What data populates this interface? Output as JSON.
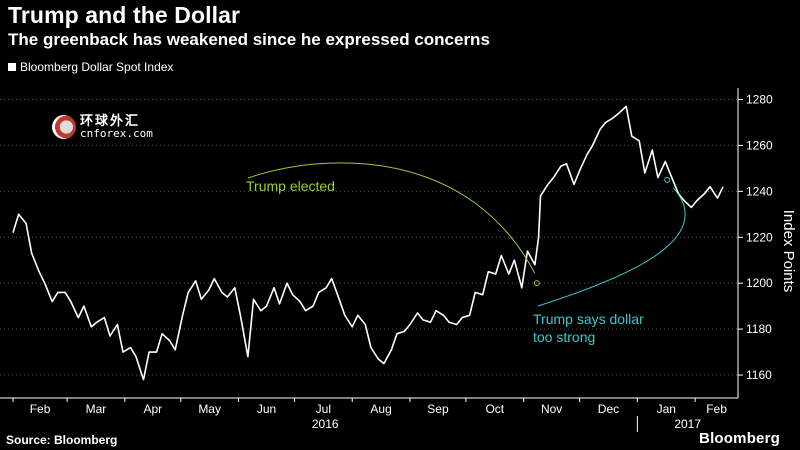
{
  "header": {
    "title": "Trump and the Dollar",
    "subtitle": "The greenback has weakened since he expressed concerns",
    "legend_label": "Bloomberg Dollar Spot Index"
  },
  "footer": {
    "source": "Source: Bloomberg",
    "brand": "Bloomberg"
  },
  "watermark": {
    "cn": "环球外汇",
    "en": "cnforex.com"
  },
  "colors": {
    "background": "#000000",
    "line": "#ffffff",
    "annotation_elected": "#9acd32",
    "annotation_strong": "#3ec6d0",
    "grid": "#555555"
  },
  "chart_data": {
    "type": "line",
    "title": "Trump and the Dollar",
    "subtitle": "The greenback has weakened since he expressed concerns",
    "ylabel": "Index Points",
    "ylim": [
      1150,
      1285
    ],
    "yticks": [
      1160,
      1180,
      1200,
      1220,
      1240,
      1260,
      1280
    ],
    "y_axis_side": "right",
    "grid": "horizontal dotted",
    "x_month_labels": [
      "Feb",
      "Mar",
      "Apr",
      "May",
      "Jun",
      "Jul",
      "Aug",
      "Sep",
      "Oct",
      "Nov",
      "Dec",
      "Jan",
      "Feb"
    ],
    "x_year_labels": [
      "2016",
      "2017"
    ],
    "series": [
      {
        "name": "Bloomberg Dollar Spot Index",
        "x": [
          "2016-02-01",
          "2016-02-04",
          "2016-02-08",
          "2016-02-11",
          "2016-02-15",
          "2016-02-18",
          "2016-02-22",
          "2016-02-25",
          "2016-02-29",
          "2016-03-03",
          "2016-03-07",
          "2016-03-10",
          "2016-03-14",
          "2016-03-17",
          "2016-03-21",
          "2016-03-24",
          "2016-03-28",
          "2016-03-31",
          "2016-04-04",
          "2016-04-07",
          "2016-04-11",
          "2016-04-14",
          "2016-04-18",
          "2016-04-21",
          "2016-04-25",
          "2016-04-28",
          "2016-05-02",
          "2016-05-05",
          "2016-05-09",
          "2016-05-12",
          "2016-05-16",
          "2016-05-19",
          "2016-05-23",
          "2016-05-26",
          "2016-05-30",
          "2016-06-02",
          "2016-06-06",
          "2016-06-09",
          "2016-06-13",
          "2016-06-16",
          "2016-06-20",
          "2016-06-23",
          "2016-06-27",
          "2016-06-30",
          "2016-07-04",
          "2016-07-07",
          "2016-07-11",
          "2016-07-14",
          "2016-07-18",
          "2016-07-21",
          "2016-07-25",
          "2016-07-28",
          "2016-08-01",
          "2016-08-04",
          "2016-08-08",
          "2016-08-11",
          "2016-08-15",
          "2016-08-18",
          "2016-08-22",
          "2016-08-25",
          "2016-08-29",
          "2016-09-01",
          "2016-09-05",
          "2016-09-08",
          "2016-09-12",
          "2016-09-15",
          "2016-09-19",
          "2016-09-22",
          "2016-09-26",
          "2016-09-29",
          "2016-10-03",
          "2016-10-06",
          "2016-10-10",
          "2016-10-13",
          "2016-10-17",
          "2016-10-20",
          "2016-10-24",
          "2016-10-27",
          "2016-10-31",
          "2016-11-03",
          "2016-11-07",
          "2016-11-09",
          "2016-11-10",
          "2016-11-14",
          "2016-11-17",
          "2016-11-21",
          "2016-11-24",
          "2016-11-28",
          "2016-12-01",
          "2016-12-05",
          "2016-12-08",
          "2016-12-12",
          "2016-12-15",
          "2016-12-19",
          "2016-12-22",
          "2016-12-26",
          "2016-12-29",
          "2017-01-02",
          "2017-01-05",
          "2017-01-09",
          "2017-01-12",
          "2017-01-16",
          "2017-01-19",
          "2017-01-23",
          "2017-01-26",
          "2017-01-30",
          "2017-02-02",
          "2017-02-06",
          "2017-02-09",
          "2017-02-13",
          "2017-02-16"
        ],
        "values": [
          1222,
          1230,
          1226,
          1213,
          1205,
          1200,
          1192,
          1196,
          1196,
          1192,
          1185,
          1190,
          1181,
          1183,
          1185,
          1177,
          1182,
          1170,
          1172,
          1168,
          1158,
          1170,
          1170,
          1178,
          1175,
          1171,
          1186,
          1196,
          1201,
          1193,
          1197,
          1202,
          1196,
          1194,
          1198,
          1186,
          1168,
          1193,
          1188,
          1190,
          1198,
          1191,
          1200,
          1195,
          1192,
          1188,
          1190,
          1196,
          1198,
          1202,
          1193,
          1186,
          1181,
          1186,
          1182,
          1172,
          1167,
          1165,
          1171,
          1178,
          1179,
          1182,
          1187,
          1184,
          1183,
          1188,
          1186,
          1183,
          1182,
          1185,
          1186,
          1196,
          1195,
          1205,
          1204,
          1212,
          1204,
          1210,
          1198,
          1214,
          1208,
          1220,
          1238,
          1243,
          1246,
          1251,
          1252,
          1243,
          1249,
          1256,
          1260,
          1267,
          1270,
          1272,
          1274,
          1277,
          1264,
          1262,
          1248,
          1258,
          1246,
          1253,
          1247,
          1239,
          1236,
          1233,
          1236,
          1239,
          1242,
          1237,
          1242
        ]
      }
    ],
    "annotations": [
      {
        "text": "Trump elected",
        "date": "2016-11-08",
        "value": 1200
      },
      {
        "text_lines": [
          "Trump says dollar",
          "too strong"
        ],
        "date": "2017-01-17",
        "value": 1245
      }
    ]
  }
}
